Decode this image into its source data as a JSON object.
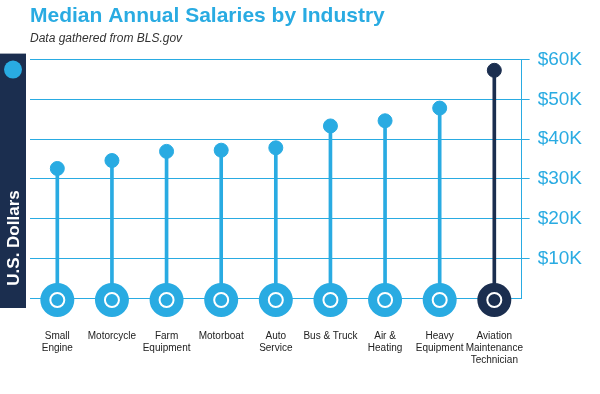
{
  "chart_data": {
    "type": "bar",
    "title": "Median Annual Salaries by Industry",
    "subtitle": "Data gathered from BLS.gov",
    "y_label": "U.S. Dollars",
    "categories": [
      "Small Engine",
      "Motorcycle",
      "Farm Equipment",
      "Motorboat",
      "Auto Service",
      "Bus & Truck",
      "Air & Heating",
      "Heavy Equipment",
      "Aviation Maintenance Technician"
    ],
    "values": [
      32600,
      34600,
      36900,
      37200,
      37800,
      43300,
      44600,
      47800,
      57300
    ],
    "colors": [
      "#29abe2",
      "#29abe2",
      "#29abe2",
      "#29abe2",
      "#29abe2",
      "#29abe2",
      "#29abe2",
      "#29abe2",
      "#1b2e4f"
    ],
    "marker": "circle",
    "ylim": [
      0,
      60000
    ],
    "yticks": [
      {
        "value": 10000,
        "label": "$10K"
      },
      {
        "value": 20000,
        "label": "$20K"
      },
      {
        "value": 30000,
        "label": "$30K"
      },
      {
        "value": 40000,
        "label": "$40K"
      },
      {
        "value": 50000,
        "label": "$50K"
      },
      {
        "value": 60000,
        "label": "$60K"
      }
    ],
    "grid": true
  }
}
